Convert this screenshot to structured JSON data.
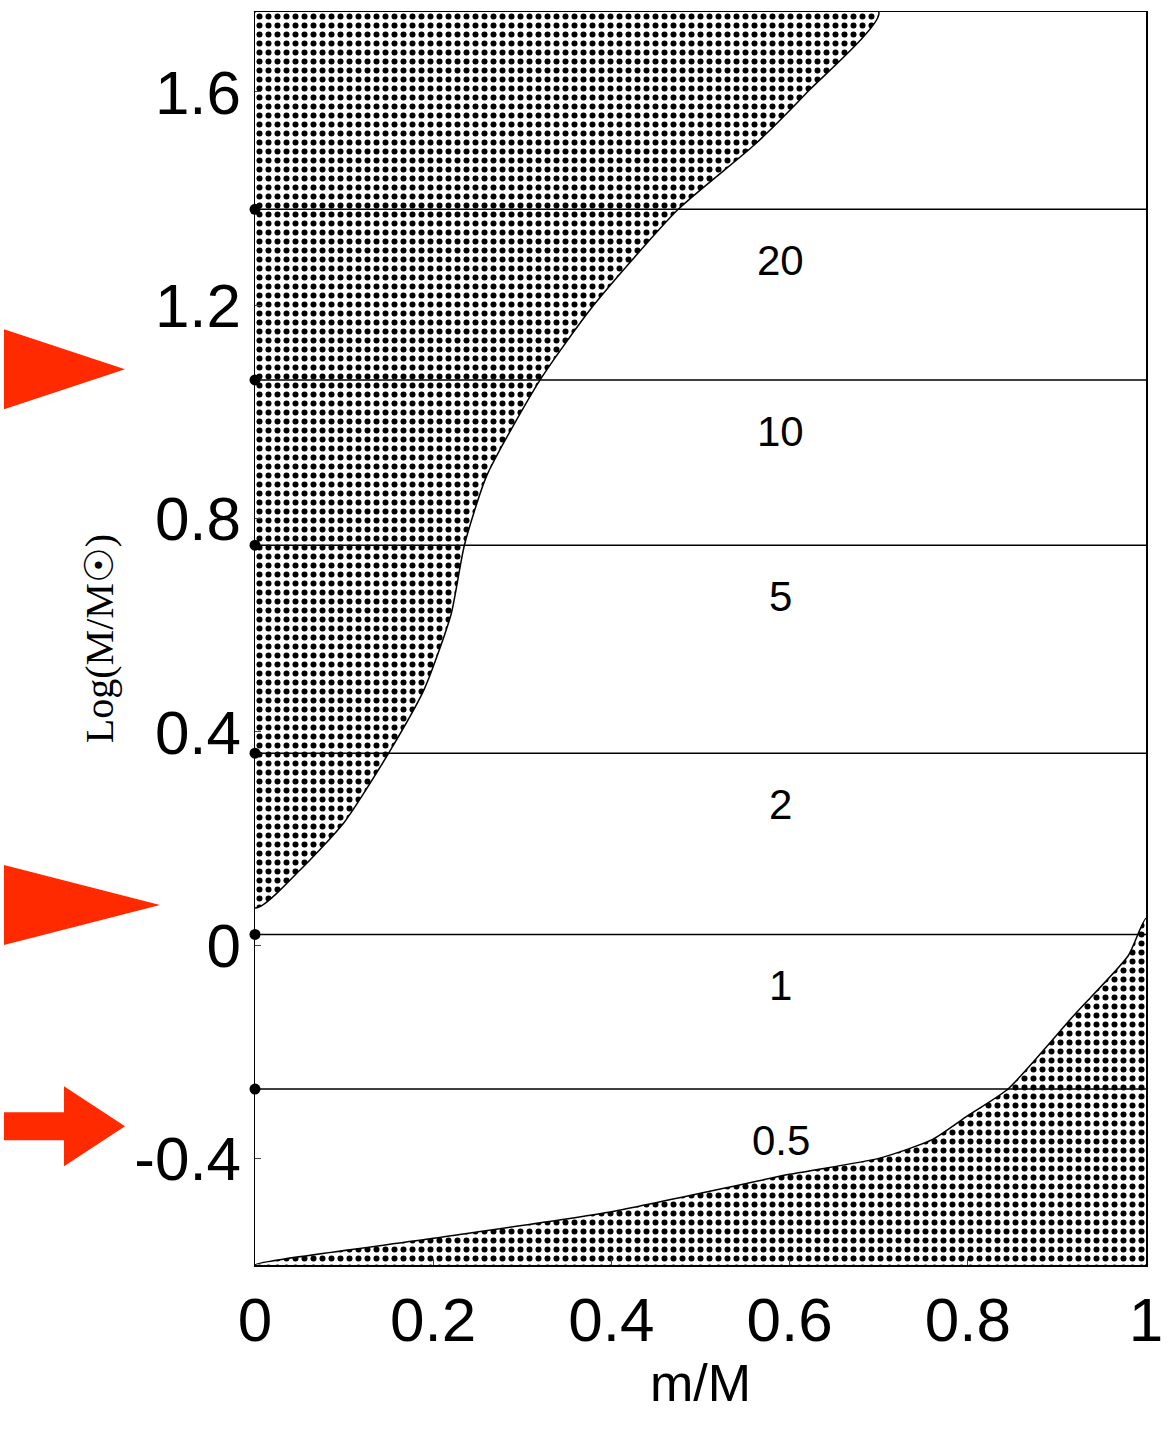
{
  "chart_data": {
    "type": "area",
    "xlabel": "m/M",
    "ylabel": "Log(M/M☉)",
    "xlim": [
      0,
      1
    ],
    "ylim": [
      -0.6,
      1.75
    ],
    "xticks": [
      0,
      0.2,
      0.4,
      0.6,
      0.8,
      1
    ],
    "yticks": [
      -0.4,
      0,
      0.4,
      0.8,
      1.2,
      1.6
    ],
    "grid": false,
    "series": [
      {
        "type": "area",
        "color": "#000000",
        "x": [
          0,
          0.05,
          0.1,
          0.15,
          0.19,
          0.22,
          0.235,
          0.26,
          0.32,
          0.38,
          0.475,
          0.56,
          0.62,
          0.7,
          0,
          0
        ],
        "y": [
          0.07,
          0.14,
          0.23,
          0.36,
          0.48,
          0.62,
          0.75,
          0.88,
          1.06,
          1.2,
          1.38,
          1.5,
          1.6,
          1.75,
          1.75,
          0.07
        ]
      },
      {
        "type": "area",
        "color": "#000000",
        "x": [
          0,
          0.2,
          0.4,
          0.6,
          0.7,
          0.76,
          0.8,
          0.845,
          0.92,
          0.98,
          1,
          1,
          0
        ],
        "y": [
          -0.6,
          -0.55,
          -0.5,
          -0.43,
          -0.4,
          -0.365,
          -0.32,
          -0.27,
          -0.13,
          -0.02,
          0.05,
          -0.6,
          -0.6
        ]
      }
    ],
    "mass_lines": {
      "y": [
        1.38,
        1.06,
        0.75,
        0.36,
        0.02,
        -0.27
      ],
      "labels": [
        20,
        10,
        5,
        2,
        1,
        0.5
      ],
      "marker": "circle",
      "color": "#000000"
    },
    "arrows": {
      "y": [
        1.08,
        0.075,
        -0.34
      ],
      "marker": [
        "triangle",
        "triangle",
        "arrow"
      ],
      "color": "#ff2a00"
    }
  }
}
